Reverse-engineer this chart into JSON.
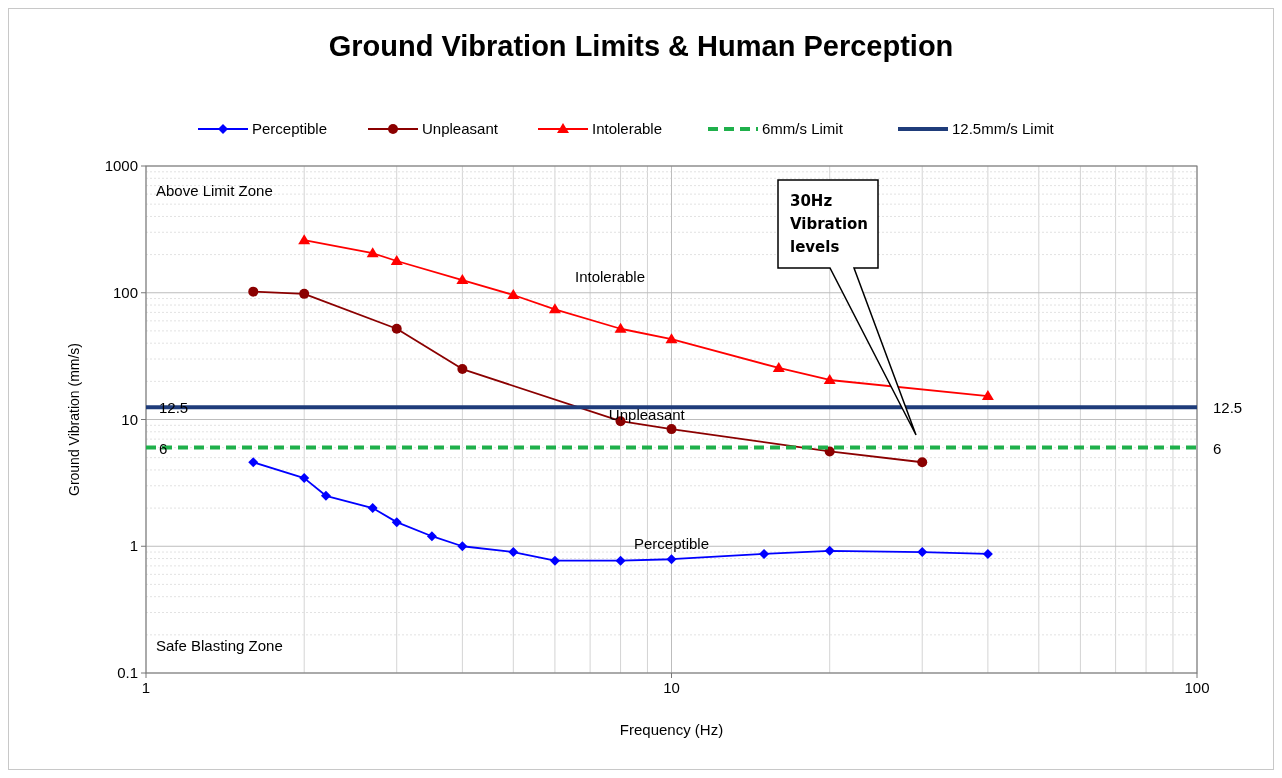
{
  "chart_data": {
    "type": "line",
    "title": "Ground Vibration Limits & Human Perception",
    "xlabel": "Frequency (Hz)",
    "ylabel": "Ground Vibration (mm/s)",
    "log": "xy",
    "grid": true,
    "legend": "top",
    "xlim": [
      1,
      100
    ],
    "xticks": [
      1,
      10,
      100
    ],
    "ylim": [
      0.1,
      1000
    ],
    "yticks": [
      0.1,
      1,
      10,
      100,
      1000
    ],
    "series": [
      {
        "name": "Perceptible",
        "color": "#0000ff",
        "marker": "diamond",
        "x": [
          1.6,
          2,
          2.2,
          2.7,
          3,
          3.5,
          4,
          5,
          6,
          8,
          10,
          15,
          20,
          30,
          40
        ],
        "values": [
          4.6,
          3.45,
          2.5,
          2.0,
          1.55,
          1.2,
          1.0,
          0.9,
          0.77,
          0.77,
          0.79,
          0.87,
          0.92,
          0.9,
          0.87
        ]
      },
      {
        "name": "Unpleasant",
        "color": "#8b0000",
        "marker": "circle",
        "x": [
          1.6,
          2,
          3,
          4,
          8,
          10,
          20,
          30
        ],
        "values": [
          102,
          98,
          52,
          25,
          9.7,
          8.4,
          5.6,
          4.6
        ]
      },
      {
        "name": "Intolerable",
        "color": "#ff0000",
        "marker": "triangle",
        "x": [
          2,
          2.7,
          3,
          4,
          5,
          6,
          8,
          10,
          16,
          20,
          40
        ],
        "values": [
          260,
          205,
          178,
          126,
          96,
          74,
          52,
          43,
          25.5,
          20.5,
          15.3
        ]
      },
      {
        "name": "6mm/s Limit",
        "color": "#1fb04b",
        "marker": "none",
        "line_style": "dashed",
        "x": [
          1,
          100
        ],
        "values": [
          6,
          6
        ]
      },
      {
        "name": "12.5mm/s Limit",
        "color": "#1f3c7a",
        "marker": "none",
        "line_style": "solid",
        "x": [
          1,
          100
        ],
        "values": [
          12.5,
          12.5
        ]
      }
    ],
    "annotations": [
      "Above Limit Zone",
      "Safe Blasting Zone",
      "Intolerable",
      {
        "text": "Unpleasant",
        "x": 7.6,
        "y": 10.8
      },
      "Perceptible",
      {
        "text": "12.5",
        "x": 1,
        "y": 12.5
      },
      {
        "text": "6",
        "x": 1,
        "y": 6
      },
      {
        "text": "12.5",
        "x": 100,
        "y": 12.5
      },
      {
        "text": "6",
        "x": 100,
        "y": 6
      },
      "30Hz Vibration levels"
    ]
  }
}
